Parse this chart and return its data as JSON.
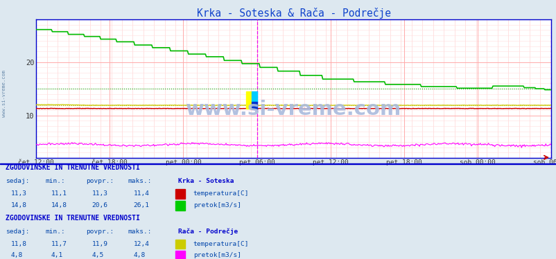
{
  "title": "Krka - Soteska & Rača - Podrečje",
  "title_color": "#1144cc",
  "bg_color": "#dde8f0",
  "plot_bg_color": "#ffffff",
  "border_color": "#0000cc",
  "y_ticks": [
    10,
    20
  ],
  "y_min": 2,
  "y_max": 28,
  "x_tick_labels": [
    "čet 12:00",
    "čet 18:00",
    "pet 00:00",
    "pet 06:00",
    "pet 12:00",
    "pet 18:00",
    "sob 00:00",
    "sob 06:00"
  ],
  "watermark": "www.si-vreme.com",
  "watermark_color": "#aabbdd",
  "krka_pretok_color": "#00bb00",
  "krka_temp_color": "#cc0000",
  "raca_temp_color": "#cccc00",
  "raca_pretok_color": "#ff00ff",
  "grid_h_color": "#ffcccc",
  "grid_v_color": "#ffcccc",
  "grid_dot_color": "#ffdddd",
  "vline_special_color": "#ff44ff",
  "avg_krka_pretok": 15.0,
  "avg_krka_temp": 11.3,
  "avg_raca_temp": 11.9,
  "avg_raca_pretok": 4.5
}
